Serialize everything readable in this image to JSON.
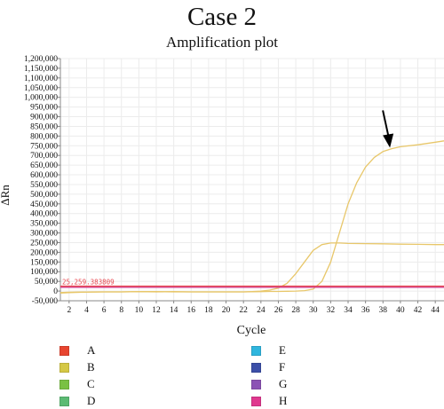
{
  "case_title": "Case 2",
  "chart_data": {
    "type": "line",
    "title": "Amplification plot",
    "xlabel": "Cycle",
    "ylabel": "ΔRn",
    "xlim": [
      1,
      45
    ],
    "ylim": [
      -50000,
      1200000
    ],
    "x_ticks": [
      2,
      4,
      6,
      8,
      10,
      12,
      14,
      16,
      18,
      20,
      22,
      24,
      26,
      28,
      30,
      32,
      34,
      36,
      38,
      40,
      42,
      44
    ],
    "y_ticks": [
      -50000,
      0,
      50000,
      100000,
      150000,
      200000,
      250000,
      300000,
      350000,
      400000,
      450000,
      500000,
      550000,
      600000,
      650000,
      700000,
      750000,
      800000,
      850000,
      900000,
      950000,
      1000000,
      1050000,
      1100000,
      1150000,
      1200000
    ],
    "y_tick_labels": [
      "-50,000",
      "0",
      "50,000",
      "100,000",
      "150,000",
      "200,000",
      "250,000",
      "300,000",
      "350,000",
      "400,000",
      "450,000",
      "500,000",
      "550,000",
      "600,000",
      "650,000",
      "700,000",
      "750,000",
      "800,000",
      "850,000",
      "900,000",
      "950,000",
      "1,000,000",
      "1,050,000",
      "1,100,000",
      "1,150,000",
      "1,200,000"
    ],
    "grid": true,
    "threshold": {
      "value": 25259.383809,
      "label": "25,259.383809",
      "color": "#e8474f"
    },
    "series": [
      {
        "color": "#e8c76a",
        "x": [
          1,
          2,
          4,
          6,
          8,
          10,
          12,
          14,
          16,
          18,
          20,
          22,
          24,
          25,
          26,
          27,
          28,
          29,
          30,
          31,
          32,
          33,
          34,
          35,
          36,
          37,
          38,
          39,
          40,
          42,
          44,
          45
        ],
        "y": [
          -10000,
          -8000,
          -5000,
          -4000,
          -4000,
          -3000,
          -4000,
          -3000,
          -4000,
          -4000,
          -4000,
          -4000,
          -3000,
          -2000,
          -2000,
          -1000,
          0,
          2000,
          10000,
          50000,
          150000,
          300000,
          450000,
          560000,
          640000,
          690000,
          720000,
          735000,
          745000,
          755000,
          768000,
          775000
        ]
      },
      {
        "color": "#e8c76a",
        "x": [
          1,
          2,
          4,
          6,
          8,
          10,
          12,
          14,
          16,
          18,
          20,
          22,
          23,
          24,
          25,
          26,
          27,
          28,
          29,
          30,
          31,
          32,
          33,
          34,
          36,
          38,
          40,
          42,
          44,
          45
        ],
        "y": [
          -8000,
          -6000,
          -5000,
          -4000,
          -4000,
          -3000,
          -3000,
          -4000,
          -4000,
          -4000,
          -4000,
          -4000,
          -3000,
          0,
          5000,
          15000,
          40000,
          90000,
          150000,
          210000,
          240000,
          248000,
          248000,
          246000,
          245000,
          244000,
          242000,
          241000,
          240000,
          240000
        ]
      },
      {
        "color": "#d04a9a",
        "x": [
          1,
          2,
          4,
          6,
          8,
          10,
          12,
          14,
          16,
          18,
          20,
          22,
          24,
          26,
          28,
          30,
          32,
          34,
          36,
          38,
          40,
          42,
          44,
          45
        ],
        "y": [
          22000,
          22000,
          22000,
          22000,
          22000,
          22000,
          22000,
          22000,
          22000,
          22000,
          22000,
          22000,
          22000,
          22000,
          22000,
          22000,
          22000,
          22000,
          22000,
          22000,
          22000,
          22000,
          22000,
          22000
        ]
      }
    ],
    "annotations": [
      {
        "type": "arrow",
        "target_x": 38.8,
        "target_y": 740000
      }
    ],
    "legend": [
      {
        "label": "A",
        "color": "#e8452f"
      },
      {
        "label": "B",
        "color": "#d5c845"
      },
      {
        "label": "C",
        "color": "#7ac143"
      },
      {
        "label": "D",
        "color": "#5cbb73"
      },
      {
        "label": "E",
        "color": "#2fb6de"
      },
      {
        "label": "F",
        "color": "#3c4fa8"
      },
      {
        "label": "G",
        "color": "#8c52b5"
      },
      {
        "label": "H",
        "color": "#e0388f"
      }
    ]
  }
}
